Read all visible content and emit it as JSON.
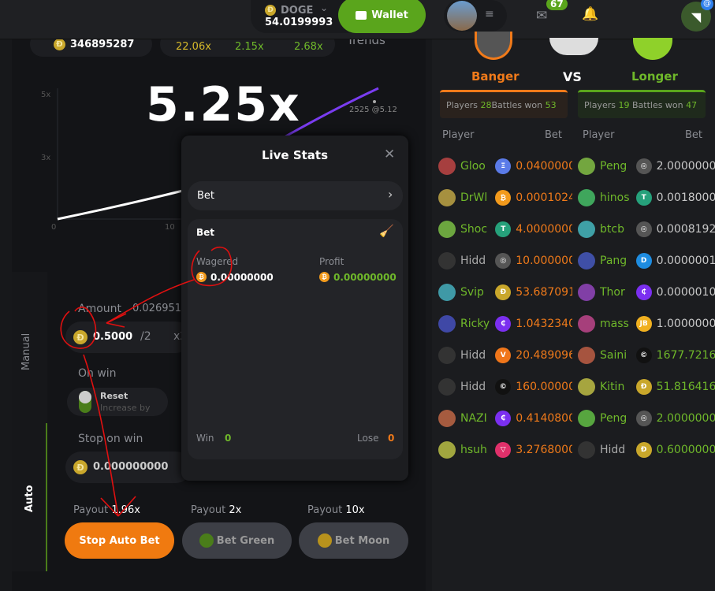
{
  "topbar": {
    "currency": "DOGE",
    "balance": "54.0199993",
    "wallet_label": "Wallet",
    "mail_badge": "67",
    "chat_badge": "@"
  },
  "game": {
    "jackpot": "346895287",
    "history": [
      "22.06x",
      "2.15x",
      "2.68x"
    ],
    "trends_label": "Trends",
    "multiplier": "5.25x",
    "point_label": "2525 @5.12",
    "chart_data": {
      "type": "line",
      "y_ticks": [
        "5x",
        "3x"
      ],
      "x_ticks": [
        "0",
        "10"
      ],
      "colors": {
        "curve": "#ffffff",
        "tail": "#7a3cf0"
      }
    }
  },
  "side_tabs": {
    "manual": "Manual",
    "auto": "Auto"
  },
  "form": {
    "amount_label": "Amount",
    "amount_usd": "0.0269510",
    "amount_value": "0.5000",
    "half": "/2",
    "double": "x2",
    "on_win_label": "On win",
    "reset_label": "Reset",
    "increase_label": "Increase by",
    "stop_on_win_label": "Stop on win",
    "stop_on_win_value": "0.000000000"
  },
  "bets": [
    {
      "payout_label": "Payout",
      "payout": "1.96x",
      "button": "Stop Auto Bet",
      "color": "#f07a10"
    },
    {
      "payout_label": "Payout",
      "payout": "2x",
      "button": "Bet Green",
      "color": "#4a7d1a"
    },
    {
      "payout_label": "Payout",
      "payout": "10x",
      "button": "Bet Moon",
      "color": "#b8921c"
    }
  ],
  "live_stats": {
    "title": "Live Stats",
    "select": "Bet",
    "section": "Bet",
    "wagered_label": "Wagered",
    "wagered": "0.00000000",
    "profit_label": "Profit",
    "profit": "0.00000000",
    "win_label": "Win",
    "win": "0",
    "lose_label": "Lose",
    "lose": "0"
  },
  "battle": {
    "left": {
      "name": "Banger",
      "players_label": "Players",
      "players": "28",
      "won_label": "Battles won",
      "won": "53"
    },
    "vs": "VS",
    "right": {
      "name": "Longer",
      "players_label": "Players",
      "players": "19",
      "won_label": "Battles won",
      "won": "47"
    },
    "col_player": "Player",
    "col_bet": "Bet"
  },
  "rows": [
    {
      "l": {
        "name": "Gloo",
        "coin": "ETH",
        "bet": "0.04000000"
      },
      "r": {
        "name": "Peng",
        "coin": "XLM",
        "bet": "2.0000000"
      }
    },
    {
      "l": {
        "name": "DrWl",
        "coin": "BTC",
        "bet": "0.0001024"
      },
      "r": {
        "name": "hinos",
        "coin": "USDT",
        "bet": "0.0018000"
      }
    },
    {
      "l": {
        "name": "Shoc",
        "coin": "USDT",
        "bet": "4.0000000"
      },
      "r": {
        "name": "btcb",
        "coin": "XLM",
        "bet": "0.0008192"
      }
    },
    {
      "l": {
        "name": "Hidd",
        "coin": "XLM",
        "bet": "10.000000"
      },
      "r": {
        "name": "Pang",
        "coin": "DASH",
        "bet": "0.0000001"
      }
    },
    {
      "l": {
        "name": "Svip",
        "coin": "DOGE",
        "bet": "53.687091"
      },
      "r": {
        "name": "Thor",
        "coin": "CELO",
        "bet": "0.0000010"
      }
    },
    {
      "l": {
        "name": "Ricky",
        "coin": "CELO",
        "bet": "1.0432340"
      },
      "r": {
        "name": "mass",
        "coin": "JB",
        "bet": "1.0000000"
      }
    },
    {
      "l": {
        "name": "Hidd",
        "coin": "VET",
        "bet": "20.489096"
      },
      "r": {
        "name": "Saini",
        "coin": "BONK",
        "bet": "1677.7216"
      }
    },
    {
      "l": {
        "name": "Hidd",
        "coin": "BONK",
        "bet": "160.00000"
      },
      "r": {
        "name": "Kitin",
        "coin": "DOGE",
        "bet": "51.816416"
      }
    },
    {
      "l": {
        "name": "NAZI",
        "coin": "CELO",
        "bet": "0.4140800"
      },
      "r": {
        "name": "Peng",
        "coin": "XLM",
        "bet": "2.0000000"
      }
    },
    {
      "l": {
        "name": "hsuh",
        "coin": "TRX",
        "bet": "3.2768000"
      },
      "r": {
        "name": "Hidd",
        "coin": "DOGE",
        "bet": "0.6000000"
      }
    }
  ]
}
